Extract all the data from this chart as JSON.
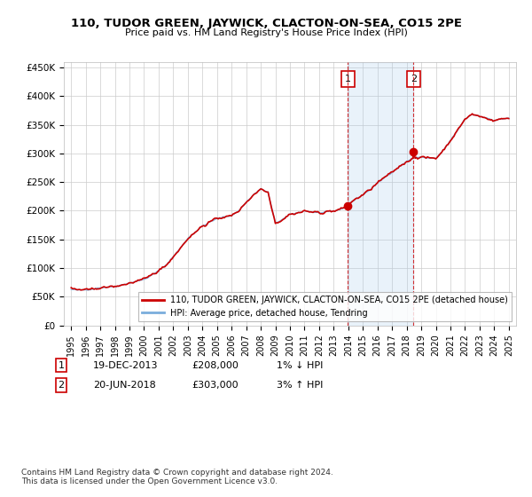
{
  "title": "110, TUDOR GREEN, JAYWICK, CLACTON-ON-SEA, CO15 2PE",
  "subtitle": "Price paid vs. HM Land Registry's House Price Index (HPI)",
  "ylabel_ticks": [
    "£0",
    "£50K",
    "£100K",
    "£150K",
    "£200K",
    "£250K",
    "£300K",
    "£350K",
    "£400K",
    "£450K"
  ],
  "ylabel_values": [
    0,
    50000,
    100000,
    150000,
    200000,
    250000,
    300000,
    350000,
    400000,
    450000
  ],
  "ylim": [
    0,
    460000
  ],
  "xlim_start": 1994.5,
  "xlim_end": 2025.5,
  "xticks": [
    1995,
    1996,
    1997,
    1998,
    1999,
    2000,
    2001,
    2002,
    2003,
    2004,
    2005,
    2006,
    2007,
    2008,
    2009,
    2010,
    2011,
    2012,
    2013,
    2014,
    2015,
    2016,
    2017,
    2018,
    2019,
    2020,
    2021,
    2022,
    2023,
    2024,
    2025
  ],
  "hpi_color": "#7aaddc",
  "price_color": "#cc0000",
  "shaded_region_color": "#ddeeff",
  "marker1_x": 2013.97,
  "marker2_x": 2018.47,
  "marker1_price": 208000,
  "marker2_price": 303000,
  "legend_entries": [
    "110, TUDOR GREEN, JAYWICK, CLACTON-ON-SEA, CO15 2PE (detached house)",
    "HPI: Average price, detached house, Tendring"
  ],
  "footer": "Contains HM Land Registry data © Crown copyright and database right 2024.\nThis data is licensed under the Open Government Licence v3.0.",
  "background_color": "#ffffff",
  "grid_color": "#cccccc"
}
